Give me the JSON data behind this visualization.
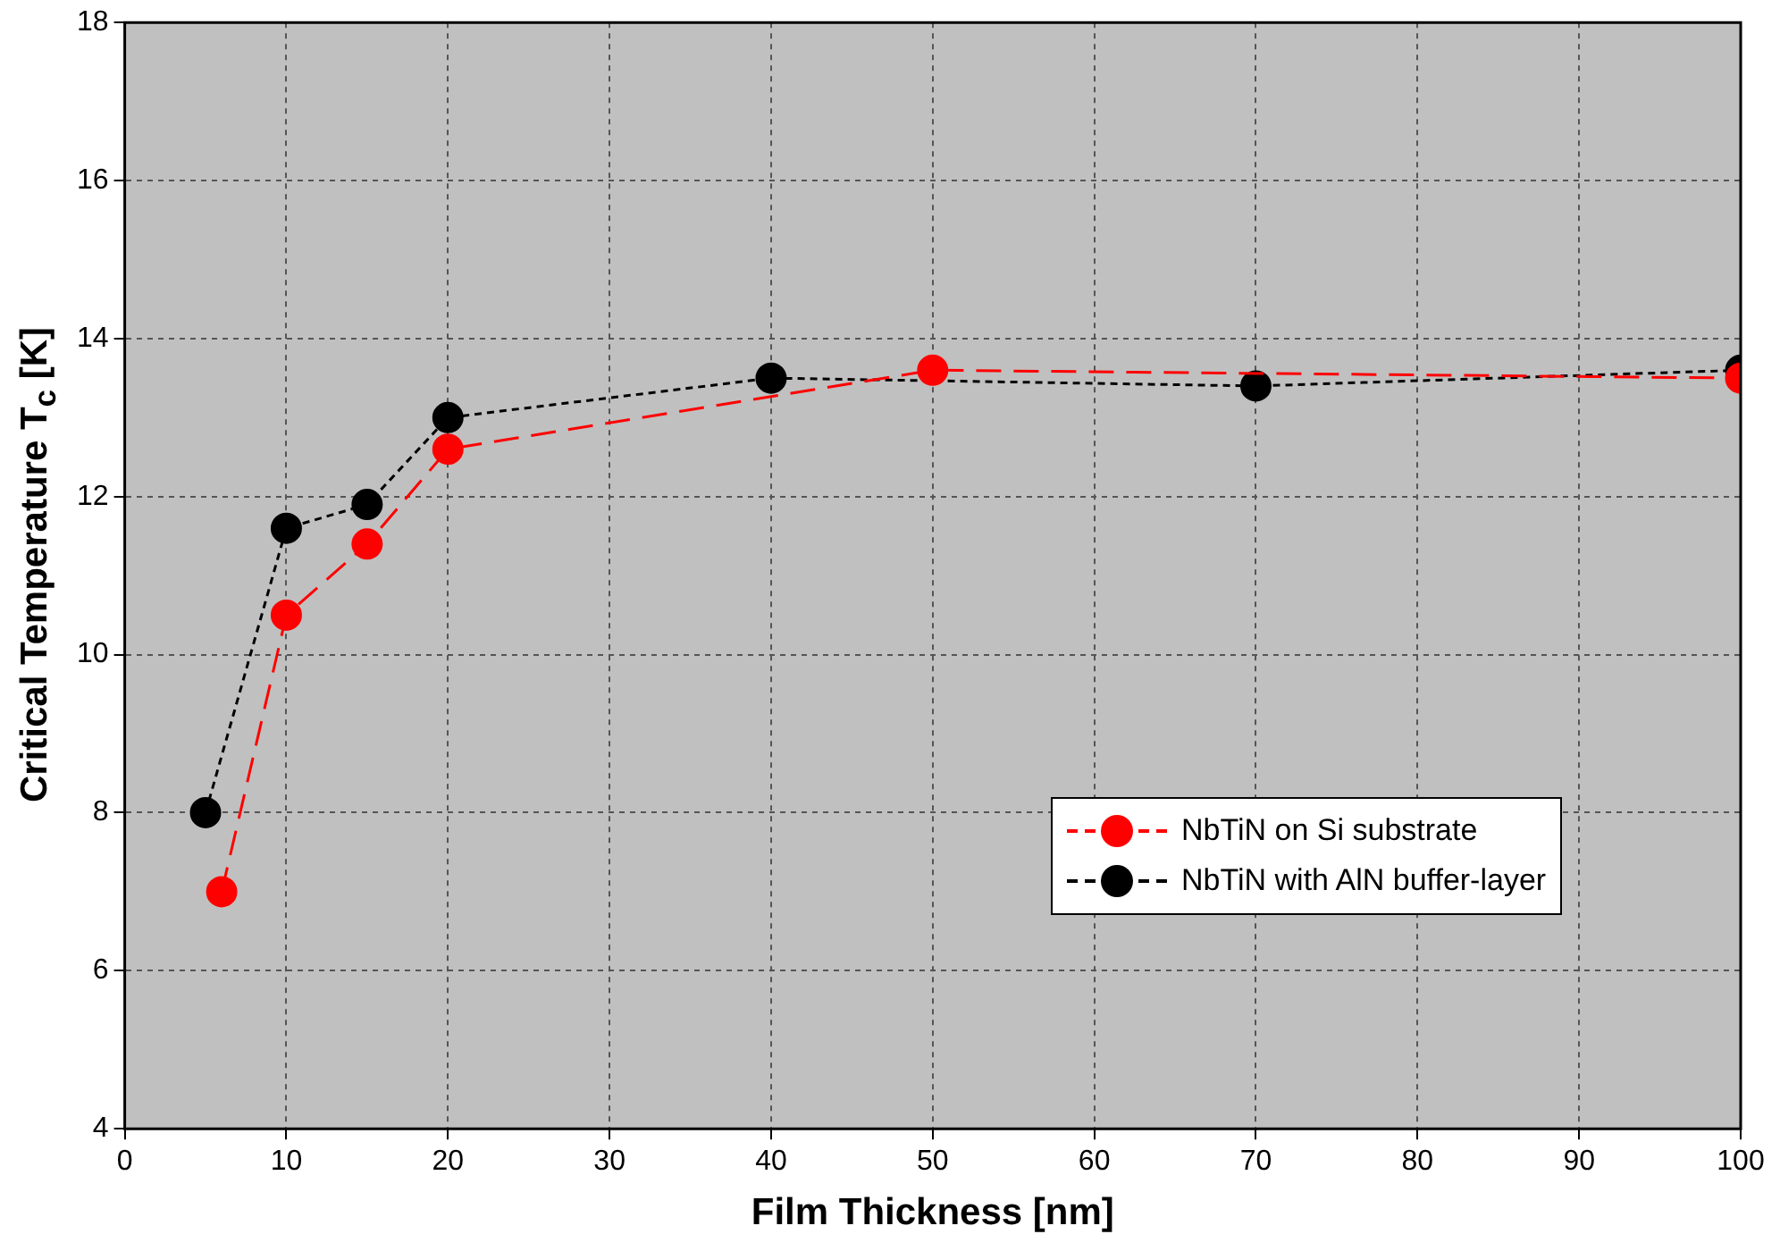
{
  "chart_data": {
    "type": "line",
    "xlabel": "Film Thickness [nm]",
    "ylabel": "Critical Temperature T$_{c}$ [K]",
    "xlim": [
      0,
      100
    ],
    "xticks": [
      0,
      10,
      20,
      30,
      40,
      50,
      60,
      70,
      80,
      90,
      100
    ],
    "ylim": [
      4,
      18
    ],
    "yticks": [
      4,
      6,
      8,
      10,
      12,
      14,
      16,
      18
    ],
    "grid": true,
    "legend": "bottom right",
    "marker": "circle",
    "series": [
      {
        "name": "NbTiN on Si substrate",
        "color": "#ff0000",
        "line_style": "dashed",
        "x": [
          6,
          10,
          15,
          20,
          50,
          100
        ],
        "values": [
          7,
          10.5,
          11.4,
          12.6,
          13.6,
          13.5
        ]
      },
      {
        "name": "NbTiN with AlN buffer-layer",
        "color": "#000000",
        "line_style": "dotted",
        "x": [
          5,
          10,
          15,
          20,
          40,
          70,
          100
        ],
        "values": [
          8,
          11.6,
          11.9,
          13,
          13.5,
          13.4,
          13.6
        ]
      }
    ]
  }
}
